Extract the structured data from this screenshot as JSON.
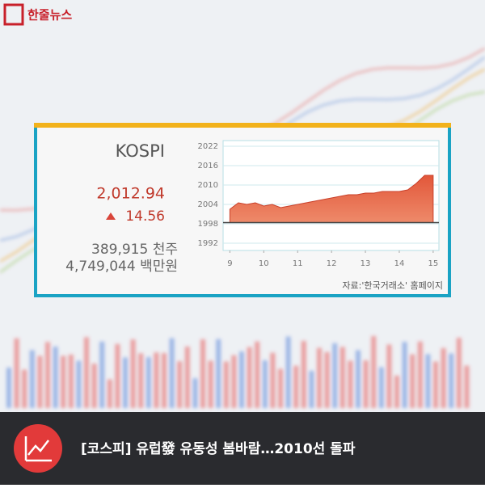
{
  "logo": "한줄뉴스",
  "panel": {
    "name": "KOSPI",
    "close": "2,012.94",
    "change": "14.56",
    "volume": "389,915 천주",
    "amount": "4,749,044 백만원",
    "source": "자료:'한국거래소' 홈페이지"
  },
  "headline": "[코스피] 유럽發 유동성 봄바람…2010선 돌파",
  "chart_data": {
    "type": "area",
    "color": "#e2573a",
    "x": [
      9,
      9.25,
      9.5,
      9.75,
      10,
      10.25,
      10.5,
      10.75,
      11,
      11.25,
      11.5,
      11.75,
      12,
      12.25,
      12.5,
      12.75,
      13,
      13.25,
      13.5,
      13.75,
      14,
      14.25,
      14.5,
      14.75,
      15
    ],
    "values": [
      2002.5,
      2004.5,
      2004,
      2004.5,
      2003.5,
      2004,
      2003,
      2003.5,
      2004,
      2004.5,
      2005,
      2005.5,
      2006,
      2006.5,
      2007,
      2007,
      2007.5,
      2007.5,
      2008,
      2008,
      2008,
      2008.5,
      2010.5,
      2013,
      2013
    ],
    "baseline": 1998.38,
    "xlim": [
      8.8,
      15.17
    ],
    "ylim": [
      1989.75,
      2023.75
    ],
    "xticks": [
      9,
      10,
      11,
      12,
      13,
      14,
      15
    ],
    "yticks": [
      1992,
      1998,
      2004,
      2010,
      2016,
      2022
    ],
    "grid": true
  }
}
